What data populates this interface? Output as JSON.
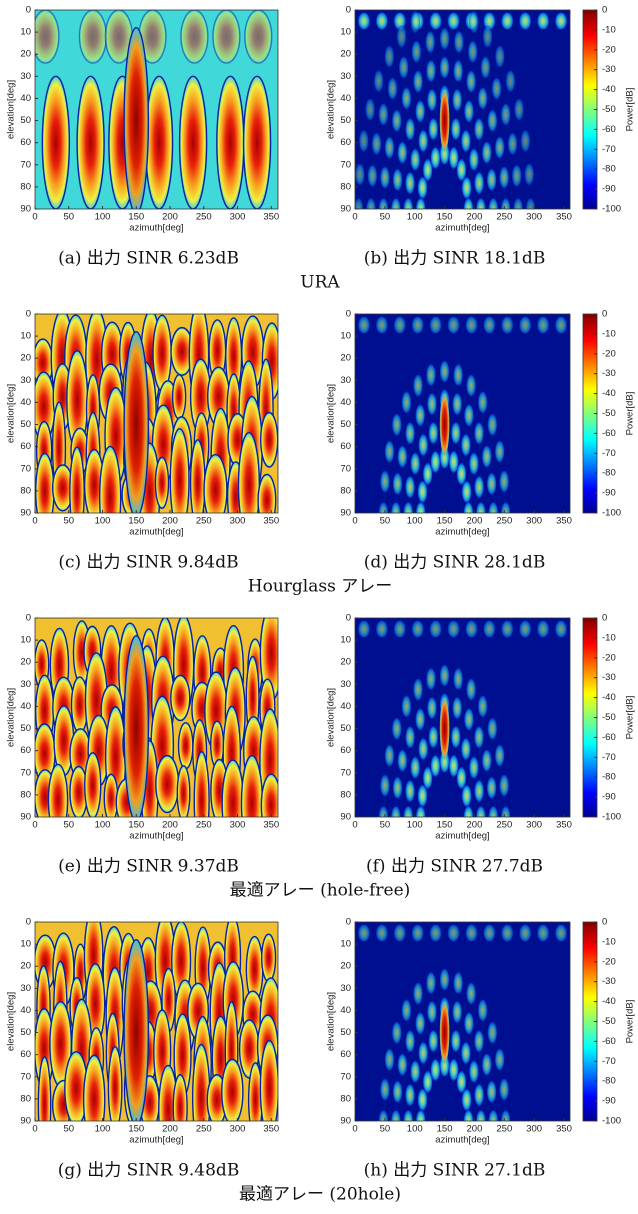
{
  "rows": [
    {
      "label": "URA",
      "panels": [
        {
          "caption": "(a) 出力 SINR 6.23dB"
        },
        {
          "caption": "(b) 出力 SINR 18.1dB"
        }
      ]
    },
    {
      "label": "Hourglass アレー",
      "panels": [
        {
          "caption": "(c) 出力 SINR 9.84dB"
        },
        {
          "caption": "(d) 出力 SINR 28.1dB"
        }
      ]
    },
    {
      "label": "最適アレー (hole-free)",
      "panels": [
        {
          "caption": "(e) 出力 SINR 9.37dB"
        },
        {
          "caption": "(f) 出力 SINR 27.7dB"
        }
      ]
    },
    {
      "label": "最適アレー (20hole)",
      "panels": [
        {
          "caption": "(g) 出力 SINR 9.48dB"
        },
        {
          "caption": "(h) 出力 SINR 27.1dB"
        }
      ]
    }
  ],
  "axes": {
    "xlabel": "azimuth[deg]",
    "ylabel": "elevation[deg]",
    "xlim": [
      0,
      360
    ],
    "xticks": [
      0,
      50,
      100,
      150,
      200,
      250,
      300,
      350
    ],
    "ylim": [
      90,
      0
    ],
    "yticks": [
      0,
      10,
      20,
      30,
      40,
      50,
      60,
      70,
      80,
      90
    ]
  },
  "colorbar": {
    "label": "Power[dB]",
    "lim": [
      -100,
      0
    ],
    "ticks": [
      0,
      -10,
      -20,
      -30,
      -40,
      -50,
      -60,
      -70,
      -80,
      -90,
      -100
    ]
  }
}
